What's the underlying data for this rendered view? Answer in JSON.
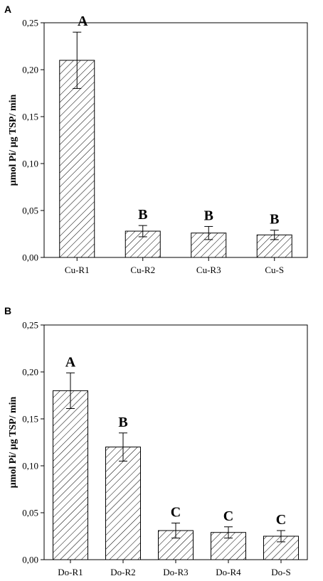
{
  "chart_data": [
    {
      "type": "bar",
      "panel": "A",
      "ylabel": "µmol Pi/ µg TSP/ min",
      "xlabel": "",
      "ylim": [
        0,
        0.25
      ],
      "yticks": [
        "0,00",
        "0,05",
        "0,10",
        "0,15",
        "0,20",
        "0,25"
      ],
      "categories": [
        "Cu-R1",
        "Cu-R2",
        "Cu-R3",
        "Cu-S"
      ],
      "values": [
        0.21,
        0.028,
        0.026,
        0.024
      ],
      "errors": [
        0.03,
        0.006,
        0.007,
        0.005
      ],
      "annotations": [
        "A",
        "B",
        "B",
        "B"
      ],
      "bar_fill": "hatched",
      "grid": false
    },
    {
      "type": "bar",
      "panel": "B",
      "ylabel": "µmol Pi/ µg TSP/ min",
      "xlabel": "",
      "ylim": [
        0,
        0.25
      ],
      "yticks": [
        "0,00",
        "0,05",
        "0,10",
        "0,15",
        "0,20",
        "0,25"
      ],
      "categories": [
        "Do-R1",
        "Do-R2",
        "Do-R3",
        "Do-R4",
        "Do-S"
      ],
      "values": [
        0.18,
        0.12,
        0.031,
        0.029,
        0.025
      ],
      "errors": [
        0.019,
        0.015,
        0.008,
        0.006,
        0.006
      ],
      "annotations": [
        "A",
        "B",
        "C",
        "C",
        "C"
      ],
      "bar_fill": "hatched",
      "grid": false
    }
  ]
}
